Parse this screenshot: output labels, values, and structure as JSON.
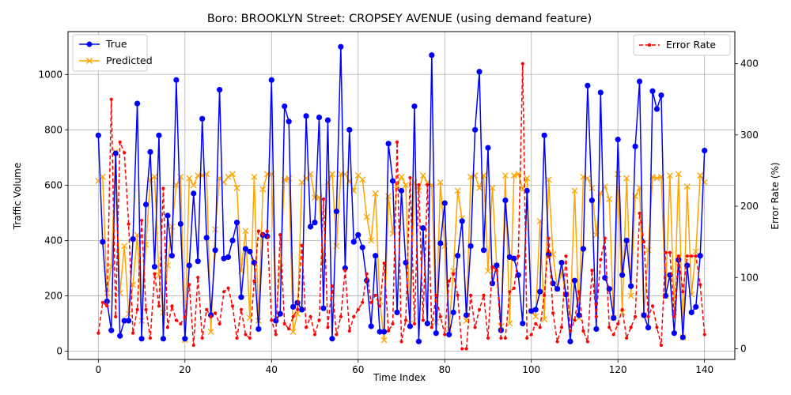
{
  "chart_data": {
    "type": "line",
    "title": "Boro: BROOKLYN Street: CROPSEY AVENUE (using demand feature)",
    "xlabel": "Time Index",
    "ylabel": "Traffic Volume",
    "y2label": "Error Rate (%)",
    "xlim": [
      -7,
      147
    ],
    "ylim": [
      -30,
      1155
    ],
    "y2lim": [
      -15,
      445
    ],
    "xticks": [
      0,
      20,
      40,
      60,
      80,
      100,
      120,
      140
    ],
    "yticks": [
      0,
      200,
      400,
      600,
      800,
      1000
    ],
    "y2ticks": [
      0,
      100,
      200,
      300,
      400
    ],
    "grid": true,
    "legend_left": "upper-left",
    "legend_right": "upper-right",
    "colors": {
      "true": "#0000ff",
      "predicted": "#ffa500",
      "error": "#ff0000"
    },
    "series": [
      {
        "name": "True",
        "axis": "left",
        "values": [
          780,
          395,
          180,
          75,
          715,
          55,
          110,
          110,
          405,
          895,
          45,
          530,
          720,
          305,
          780,
          45,
          490,
          345,
          980,
          460,
          45,
          310,
          570,
          325,
          840,
          410,
          130,
          365,
          945,
          335,
          340,
          400,
          465,
          195,
          370,
          360,
          320,
          80,
          420,
          415,
          980,
          110,
          135,
          885,
          830,
          160,
          175,
          150,
          850,
          450,
          465,
          845,
          155,
          835,
          45,
          505,
          1100,
          300,
          800,
          395,
          420,
          375,
          255,
          90,
          345,
          70,
          70,
          750,
          615,
          140,
          580,
          320,
          90,
          885,
          35,
          445,
          100,
          1070,
          65,
          390,
          535,
          60,
          140,
          345,
          470,
          130,
          380,
          800,
          1010,
          365,
          735,
          245,
          310,
          75,
          545,
          340,
          335,
          275,
          100,
          580,
          145,
          150,
          215,
          780,
          350,
          245,
          225,
          320,
          205,
          35,
          255,
          130,
          370,
          960,
          545,
          80,
          935,
          265,
          225,
          120,
          765,
          275,
          400,
          235,
          740,
          975,
          130,
          85,
          940,
          875,
          925,
          200,
          275,
          65,
          330,
          50,
          310,
          140,
          160,
          345,
          725
        ]
      },
      {
        "name": "Predicted",
        "axis": "left",
        "values": [
          615,
          630,
          210,
          305,
          720,
          210,
          380,
          135,
          240,
          420,
          110,
          385,
          620,
          630,
          275,
          140,
          310,
          450,
          600,
          630,
          40,
          625,
          600,
          635,
          635,
          640,
          70,
          440,
          625,
          610,
          630,
          640,
          590,
          290,
          435,
          120,
          630,
          110,
          585,
          640,
          640,
          120,
          300,
          620,
          625,
          70,
          135,
          610,
          625,
          640,
          555,
          555,
          320,
          610,
          640,
          380,
          640,
          640,
          615,
          580,
          635,
          620,
          485,
          400,
          570,
          180,
          40,
          560,
          425,
          600,
          630,
          600,
          100,
          610,
          580,
          635,
          610,
          600,
          105,
          610,
          380,
          80,
          290,
          580,
          480,
          110,
          630,
          635,
          590,
          635,
          290,
          590,
          310,
          90,
          635,
          100,
          635,
          640,
          585,
          625,
          145,
          125,
          470,
          115,
          620,
          350,
          225,
          285,
          205,
          125,
          580,
          120,
          630,
          625,
          590,
          420,
          570,
          595,
          550,
          120,
          640,
          140,
          625,
          200,
          560,
          590,
          130,
          365,
          630,
          625,
          630,
          200,
          635,
          140,
          640,
          50,
          595,
          205,
          360,
          635,
          610
        ]
      },
      {
        "name": "Error Rate",
        "axis": "right",
        "values": [
          22,
          65,
          60,
          350,
          45,
          290,
          275,
          175,
          22,
          55,
          180,
          55,
          15,
          105,
          60,
          225,
          30,
          60,
          40,
          35,
          45,
          90,
          5,
          100,
          15,
          55,
          45,
          50,
          35,
          80,
          85,
          60,
          15,
          55,
          20,
          15,
          95,
          165,
          160,
          165,
          40,
          20,
          160,
          35,
          28,
          45,
          55,
          145,
          30,
          45,
          20,
          40,
          210,
          30,
          88,
          20,
          45,
          110,
          25,
          45,
          55,
          65,
          105,
          65,
          75,
          60,
          120,
          25,
          35,
          290,
          10,
          40,
          240,
          35,
          230,
          40,
          230,
          30,
          75,
          45,
          20,
          95,
          105,
          75,
          0,
          0,
          75,
          30,
          55,
          75,
          15,
          115,
          110,
          15,
          15,
          80,
          85,
          130,
          400,
          15,
          20,
          35,
          30,
          75,
          155,
          50,
          10,
          30,
          130,
          25,
          40,
          80,
          25,
          10,
          110,
          45,
          125,
          155,
          30,
          20,
          35,
          55,
          15,
          30,
          45,
          190,
          150,
          45,
          60,
          30,
          5,
          135,
          135,
          45,
          130,
          80,
          130,
          130,
          130,
          90,
          20
        ]
      }
    ]
  }
}
